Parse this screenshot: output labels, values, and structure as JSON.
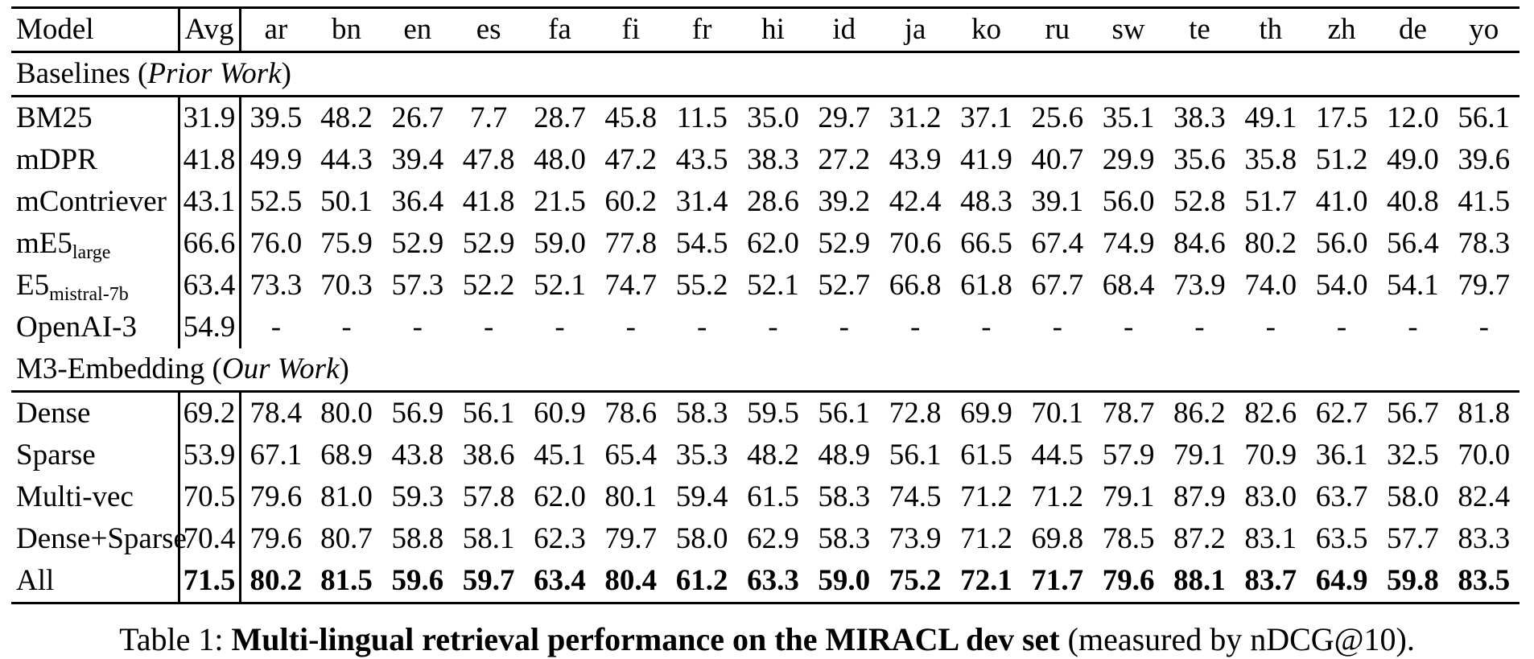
{
  "table": {
    "columns": [
      "Model",
      "Avg",
      "ar",
      "bn",
      "en",
      "es",
      "fa",
      "fi",
      "fr",
      "hi",
      "id",
      "ja",
      "ko",
      "ru",
      "sw",
      "te",
      "th",
      "zh",
      "de",
      "yo"
    ],
    "sections": [
      {
        "title_prefix": "Baselines (",
        "title_italic": "Prior Work",
        "title_suffix": ")",
        "rows": [
          {
            "model": "BM25",
            "sub": "",
            "avg": "31.9",
            "bold": false,
            "values": [
              "39.5",
              "48.2",
              "26.7",
              "7.7",
              "28.7",
              "45.8",
              "11.5",
              "35.0",
              "29.7",
              "31.2",
              "37.1",
              "25.6",
              "35.1",
              "38.3",
              "49.1",
              "17.5",
              "12.0",
              "56.1"
            ]
          },
          {
            "model": "mDPR",
            "sub": "",
            "avg": "41.8",
            "bold": false,
            "values": [
              "49.9",
              "44.3",
              "39.4",
              "47.8",
              "48.0",
              "47.2",
              "43.5",
              "38.3",
              "27.2",
              "43.9",
              "41.9",
              "40.7",
              "29.9",
              "35.6",
              "35.8",
              "51.2",
              "49.0",
              "39.6"
            ]
          },
          {
            "model": "mContriever",
            "sub": "",
            "avg": "43.1",
            "bold": false,
            "values": [
              "52.5",
              "50.1",
              "36.4",
              "41.8",
              "21.5",
              "60.2",
              "31.4",
              "28.6",
              "39.2",
              "42.4",
              "48.3",
              "39.1",
              "56.0",
              "52.8",
              "51.7",
              "41.0",
              "40.8",
              "41.5"
            ]
          },
          {
            "model": "mE5",
            "sub": "large",
            "avg": "66.6",
            "bold": false,
            "values": [
              "76.0",
              "75.9",
              "52.9",
              "52.9",
              "59.0",
              "77.8",
              "54.5",
              "62.0",
              "52.9",
              "70.6",
              "66.5",
              "67.4",
              "74.9",
              "84.6",
              "80.2",
              "56.0",
              "56.4",
              "78.3"
            ]
          },
          {
            "model": "E5",
            "sub": "mistral-7b",
            "avg": "63.4",
            "bold": false,
            "values": [
              "73.3",
              "70.3",
              "57.3",
              "52.2",
              "52.1",
              "74.7",
              "55.2",
              "52.1",
              "52.7",
              "66.8",
              "61.8",
              "67.7",
              "68.4",
              "73.9",
              "74.0",
              "54.0",
              "54.1",
              "79.7"
            ]
          },
          {
            "model": "OpenAI-3",
            "sub": "",
            "avg": "54.9",
            "bold": false,
            "values": [
              "-",
              "-",
              "-",
              "-",
              "-",
              "-",
              "-",
              "-",
              "-",
              "-",
              "-",
              "-",
              "-",
              "-",
              "-",
              "-",
              "-",
              "-"
            ]
          }
        ]
      },
      {
        "title_prefix": "M3-Embedding (",
        "title_italic": "Our Work",
        "title_suffix": ")",
        "rows": [
          {
            "model": "Dense",
            "sub": "",
            "avg": "69.2",
            "bold": false,
            "values": [
              "78.4",
              "80.0",
              "56.9",
              "56.1",
              "60.9",
              "78.6",
              "58.3",
              "59.5",
              "56.1",
              "72.8",
              "69.9",
              "70.1",
              "78.7",
              "86.2",
              "82.6",
              "62.7",
              "56.7",
              "81.8"
            ]
          },
          {
            "model": "Sparse",
            "sub": "",
            "avg": "53.9",
            "bold": false,
            "values": [
              "67.1",
              "68.9",
              "43.8",
              "38.6",
              "45.1",
              "65.4",
              "35.3",
              "48.2",
              "48.9",
              "56.1",
              "61.5",
              "44.5",
              "57.9",
              "79.1",
              "70.9",
              "36.1",
              "32.5",
              "70.0"
            ]
          },
          {
            "model": "Multi-vec",
            "sub": "",
            "avg": "70.5",
            "bold": false,
            "values": [
              "79.6",
              "81.0",
              "59.3",
              "57.8",
              "62.0",
              "80.1",
              "59.4",
              "61.5",
              "58.3",
              "74.5",
              "71.2",
              "71.2",
              "79.1",
              "87.9",
              "83.0",
              "63.7",
              "58.0",
              "82.4"
            ]
          },
          {
            "model": "Dense+Sparse",
            "sub": "",
            "avg": "70.4",
            "bold": false,
            "values": [
              "79.6",
              "80.7",
              "58.8",
              "58.1",
              "62.3",
              "79.7",
              "58.0",
              "62.9",
              "58.3",
              "73.9",
              "71.2",
              "69.8",
              "78.5",
              "87.2",
              "83.1",
              "63.5",
              "57.7",
              "83.3"
            ]
          },
          {
            "model": "All",
            "sub": "",
            "avg": "71.5",
            "bold": true,
            "values": [
              "80.2",
              "81.5",
              "59.6",
              "59.7",
              "63.4",
              "80.4",
              "61.2",
              "63.3",
              "59.0",
              "75.2",
              "72.1",
              "71.7",
              "79.6",
              "88.1",
              "83.7",
              "64.9",
              "59.8",
              "83.5"
            ]
          }
        ]
      }
    ]
  },
  "caption": {
    "prefix": "Table 1: ",
    "bold": "Multi-lingual retrieval performance on the MIRACL dev set",
    "suffix": " (measured by nDCG@10)."
  }
}
